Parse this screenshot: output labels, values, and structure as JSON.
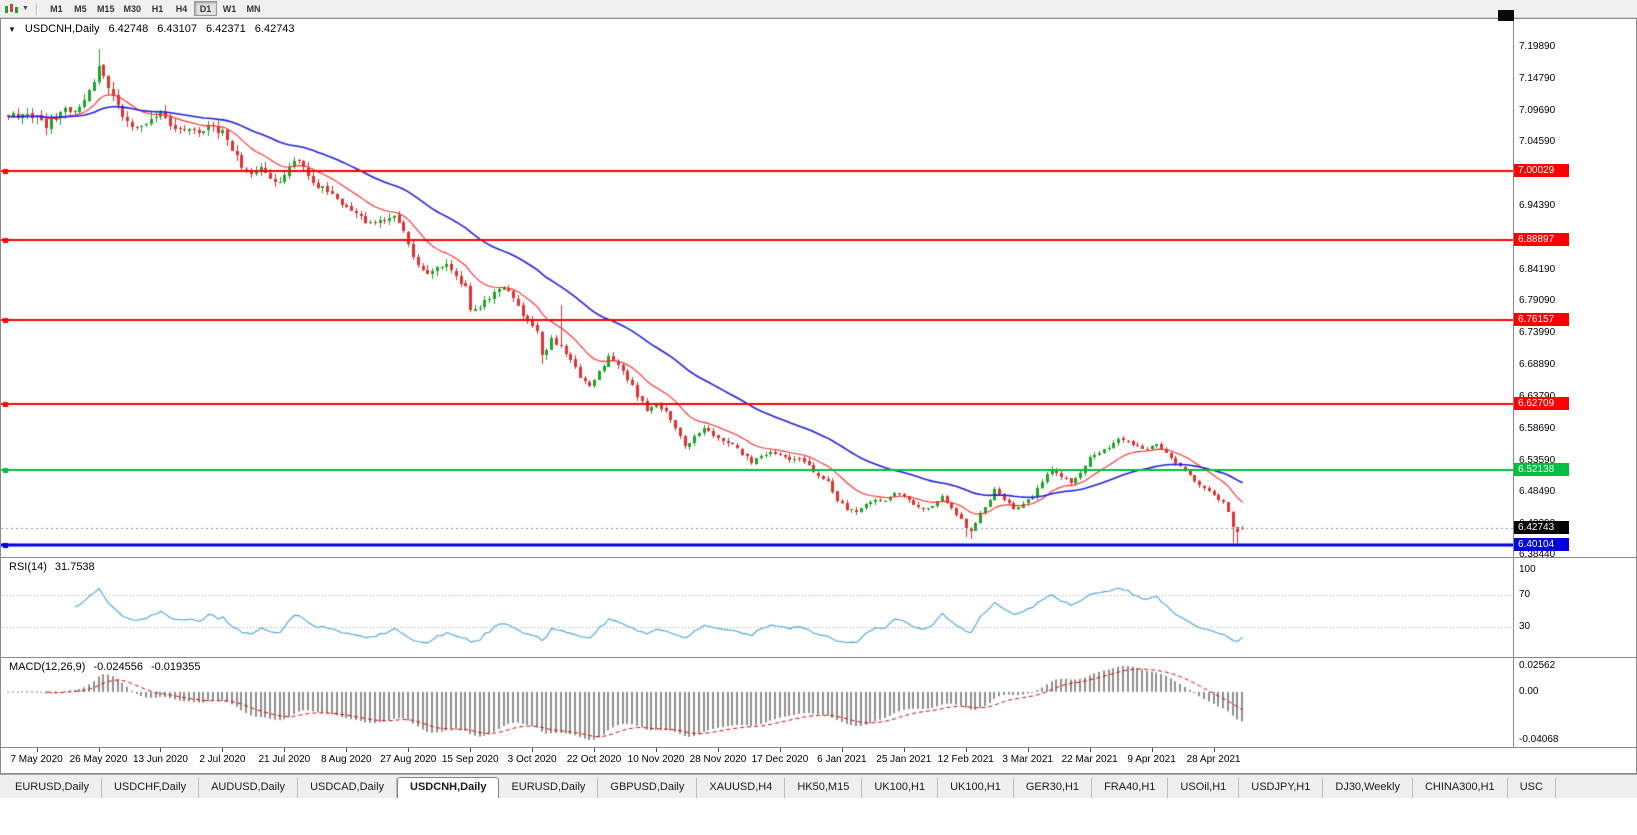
{
  "toolbar": {
    "periods": [
      "M1",
      "M5",
      "M15",
      "M30",
      "H1",
      "H4",
      "D1",
      "W1",
      "MN"
    ],
    "active_period": "D1"
  },
  "tabs": {
    "items": [
      "EURUSD,Daily",
      "USDCHF,Daily",
      "AUDUSD,Daily",
      "USDCAD,Daily",
      "USDCNH,Daily",
      "EURUSD,Daily",
      "GBPUSD,Daily",
      "XAUUSD,H4",
      "HK50,M15",
      "UK100,H1",
      "UK100,H1",
      "GER30,H1",
      "FRA40,H1",
      "USOil,H1",
      "USDJPY,H1",
      "DJ30,Weekly",
      "CHINA300,H1",
      "USC"
    ],
    "active_index": 4
  },
  "chart_data": {
    "type": "candlestick",
    "title": {
      "symbol": "USDCNH,Daily",
      "open": "6.42748",
      "high": "6.43107",
      "low": "6.42371",
      "close": "6.42743"
    },
    "y_axis": {
      "ticks": [
        "7.19890",
        "7.14790",
        "7.09690",
        "7.04590",
        "6.99490",
        "6.94390",
        "6.89290",
        "6.84190",
        "6.79090",
        "6.73990",
        "6.68890",
        "6.63790",
        "6.58690",
        "6.53590",
        "6.48490",
        "6.43390",
        "6.38440"
      ],
      "range_top": 7.1989,
      "range_bottom": 6.3844
    },
    "x_axis": {
      "labels": [
        "7 May 2020",
        "26 May 2020",
        "13 Jun 2020",
        "2 Jul 2020",
        "21 Jul 2020",
        "8 Aug 2020",
        "27 Aug 2020",
        "15 Sep 2020",
        "3 Oct 2020",
        "22 Oct 2020",
        "10 Nov 2020",
        "28 Nov 2020",
        "17 Dec 2020",
        "6 Jan 2021",
        "25 Jan 2021",
        "12 Feb 2021",
        "3 Mar 2021",
        "22 Mar 2021",
        "9 Apr 2021",
        "28 Apr 2021"
      ],
      "bars_per_label": 13,
      "first_label_bar": 6
    },
    "levels": [
      {
        "value": 7.00029,
        "label": "7.00029",
        "color": "#ff0000",
        "width": 2,
        "role": "resistance"
      },
      {
        "value": 6.88897,
        "label": "6.88897",
        "color": "#ff0000",
        "width": 2,
        "role": "resistance"
      },
      {
        "value": 6.76157,
        "label": "6.76157",
        "color": "#ff0000",
        "width": 2,
        "role": "resistance"
      },
      {
        "value": 6.62709,
        "label": "6.62709",
        "color": "#ff0000",
        "width": 2,
        "role": "resistance"
      },
      {
        "value": 6.52138,
        "label": "6.52138",
        "color": "#00bf40",
        "width": 2,
        "role": "level"
      },
      {
        "value": 6.40104,
        "label": "6.40104",
        "color": "#0000e0",
        "width": 3,
        "role": "support"
      }
    ],
    "current_price": {
      "value": 6.42743,
      "label": "6.42743",
      "badge_color": "#000000"
    },
    "series": {
      "bars_total": 260,
      "up_color": "#1fa32e",
      "down_color": "#e03232",
      "close_path_anchors": [
        [
          0,
          7.088
        ],
        [
          6,
          7.09
        ],
        [
          8,
          7.072
        ],
        [
          10,
          7.085
        ],
        [
          12,
          7.098
        ],
        [
          14,
          7.092
        ],
        [
          16,
          7.112
        ],
        [
          18,
          7.148
        ],
        [
          19,
          7.172
        ],
        [
          20,
          7.155
        ],
        [
          22,
          7.118
        ],
        [
          24,
          7.088
        ],
        [
          26,
          7.068
        ],
        [
          28,
          7.076
        ],
        [
          30,
          7.084
        ],
        [
          32,
          7.091
        ],
        [
          34,
          7.077
        ],
        [
          36,
          7.068
        ],
        [
          39,
          7.062
        ],
        [
          42,
          7.071
        ],
        [
          45,
          7.063
        ],
        [
          47,
          7.035
        ],
        [
          49,
          7.008
        ],
        [
          51,
          6.993
        ],
        [
          53,
          7.003
        ],
        [
          55,
          6.988
        ],
        [
          57,
          6.982
        ],
        [
          59,
          7.008
        ],
        [
          61,
          7.018
        ],
        [
          63,
          6.992
        ],
        [
          65,
          6.976
        ],
        [
          67,
          6.968
        ],
        [
          69,
          6.952
        ],
        [
          71,
          6.945
        ],
        [
          73,
          6.932
        ],
        [
          75,
          6.92
        ],
        [
          77,
          6.915
        ],
        [
          79,
          6.923
        ],
        [
          81,
          6.928
        ],
        [
          83,
          6.905
        ],
        [
          84,
          6.882
        ],
        [
          86,
          6.848
        ],
        [
          88,
          6.834
        ],
        [
          90,
          6.843
        ],
        [
          92,
          6.849
        ],
        [
          94,
          6.828
        ],
        [
          96,
          6.812
        ],
        [
          97,
          6.778
        ],
        [
          99,
          6.783
        ],
        [
          101,
          6.796
        ],
        [
          103,
          6.813
        ],
        [
          105,
          6.806
        ],
        [
          107,
          6.783
        ],
        [
          109,
          6.758
        ],
        [
          111,
          6.742
        ],
        [
          112,
          6.703
        ],
        [
          114,
          6.729
        ],
        [
          116,
          6.719
        ],
        [
          118,
          6.696
        ],
        [
          120,
          6.672
        ],
        [
          122,
          6.655
        ],
        [
          124,
          6.679
        ],
        [
          126,
          6.701
        ],
        [
          128,
          6.689
        ],
        [
          130,
          6.668
        ],
        [
          132,
          6.641
        ],
        [
          134,
          6.618
        ],
        [
          136,
          6.623
        ],
        [
          138,
          6.612
        ],
        [
          140,
          6.586
        ],
        [
          142,
          6.559
        ],
        [
          144,
          6.573
        ],
        [
          146,
          6.586
        ],
        [
          148,
          6.577
        ],
        [
          150,
          6.569
        ],
        [
          152,
          6.563
        ],
        [
          154,
          6.547
        ],
        [
          156,
          6.533
        ],
        [
          158,
          6.541
        ],
        [
          160,
          6.551
        ],
        [
          162,
          6.543
        ],
        [
          164,
          6.537
        ],
        [
          166,
          6.541
        ],
        [
          168,
          6.528
        ],
        [
          170,
          6.509
        ],
        [
          172,
          6.501
        ],
        [
          174,
          6.473
        ],
        [
          176,
          6.459
        ],
        [
          178,
          6.453
        ],
        [
          180,
          6.465
        ],
        [
          182,
          6.475
        ],
        [
          184,
          6.471
        ],
        [
          186,
          6.485
        ],
        [
          188,
          6.479
        ],
        [
          190,
          6.465
        ],
        [
          192,
          6.456
        ],
        [
          194,
          6.463
        ],
        [
          196,
          6.477
        ],
        [
          198,
          6.461
        ],
        [
          200,
          6.441
        ],
        [
          201,
          6.429
        ],
        [
          202,
          6.423
        ],
        [
          204,
          6.451
        ],
        [
          206,
          6.473
        ],
        [
          207,
          6.491
        ],
        [
          209,
          6.473
        ],
        [
          211,
          6.457
        ],
        [
          213,
          6.465
        ],
        [
          215,
          6.479
        ],
        [
          217,
          6.503
        ],
        [
          219,
          6.523
        ],
        [
          221,
          6.509
        ],
        [
          223,
          6.501
        ],
        [
          225,
          6.513
        ],
        [
          227,
          6.539
        ],
        [
          229,
          6.547
        ],
        [
          231,
          6.557
        ],
        [
          233,
          6.571
        ],
        [
          235,
          6.567
        ],
        [
          237,
          6.557
        ],
        [
          239,
          6.555
        ],
        [
          241,
          6.561
        ],
        [
          243,
          6.549
        ],
        [
          245,
          6.533
        ],
        [
          247,
          6.521
        ],
        [
          249,
          6.503
        ],
        [
          251,
          6.493
        ],
        [
          253,
          6.479
        ],
        [
          255,
          6.471
        ],
        [
          256,
          6.456
        ],
        [
          257,
          6.429
        ],
        [
          258,
          6.423
        ],
        [
          259,
          6.42743
        ]
      ],
      "wick_overrides": {
        "19": {
          "high": 7.196
        },
        "112": {
          "low": 6.69
        },
        "116": {
          "high": 6.786
        },
        "201": {
          "low": 6.413
        },
        "202": {
          "low": 6.41
        },
        "257": {
          "low": 6.404
        },
        "258": {
          "low": 6.401
        }
      }
    },
    "moving_averages": [
      {
        "name": "fast-ma",
        "color": "#ff2a2a"
      },
      {
        "name": "slow-ma",
        "color": "#2121dd"
      }
    ],
    "indicators": {
      "rsi": {
        "name": "RSI(14)",
        "value": "31.7538",
        "levels": [
          70,
          30
        ],
        "axis_labels": [
          "100",
          "70",
          "30"
        ],
        "color": "#4da3dc"
      },
      "macd": {
        "name": "MACD(12,26,9)",
        "value_main": "-0.024556",
        "value_signal": "-0.019355",
        "axis_top": "0.02562",
        "axis_zero": "0.00",
        "axis_bottom": "-0.04068",
        "histogram_color": "#8f8f8f",
        "signal_color": "#dd0000"
      }
    }
  }
}
